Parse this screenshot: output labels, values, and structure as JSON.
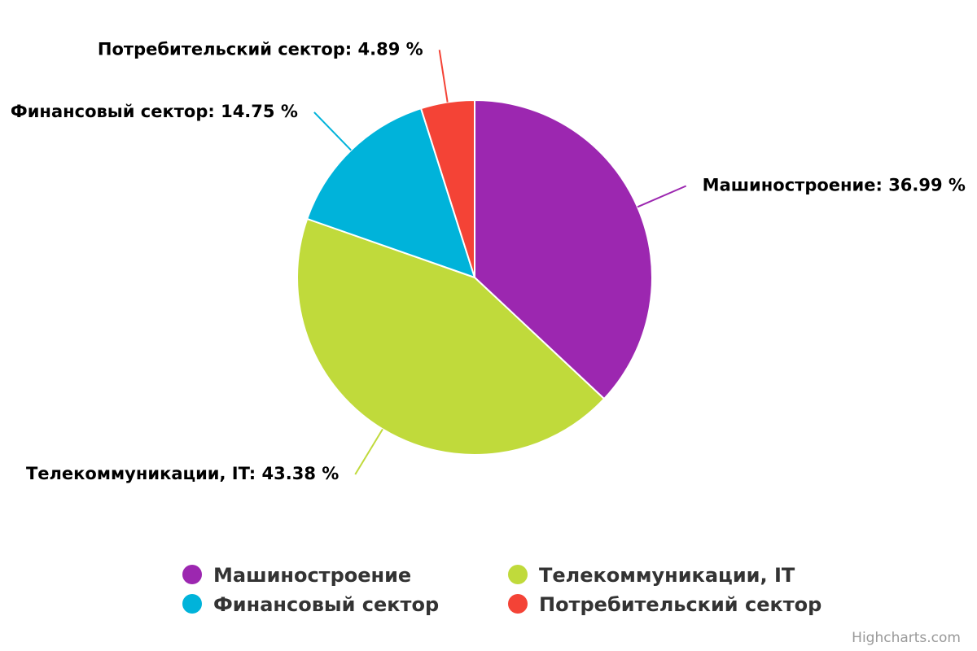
{
  "chart_data": {
    "type": "pie",
    "categories": [
      "Машиностроение",
      "Телекоммуникации, IT",
      "Финансовый сектор",
      "Потребительский сектор"
    ],
    "values": [
      36.99,
      43.38,
      14.75,
      4.89
    ],
    "value_labels": [
      "Машиностроение: 36.99 %",
      "Телекоммуникации, IT: 43.38 %",
      "Финансовый сектор: 14.75 %",
      "Потребительский сектор: 4.89 %"
    ],
    "colors": [
      "#9c27b0",
      "#c0da3b",
      "#00b3da",
      "#f44336"
    ],
    "legend": "bottom",
    "credits": "Highcharts.com"
  }
}
